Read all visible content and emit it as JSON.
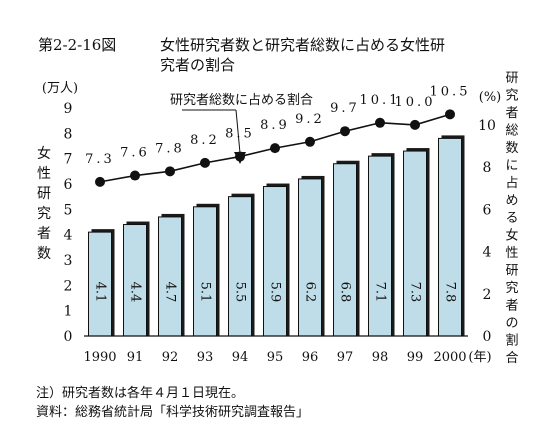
{
  "chart_data": {
    "type": "bar",
    "title": "第2-2-16図　　女性研究者数と研究者総数に占める女性研究者の割合",
    "figure_number": "第2-2-16図",
    "title_line1": "女性研究者数と研究者総数に占める女性研",
    "title_line2": "究者の割合",
    "categories": [
      "1990",
      "91",
      "92",
      "93",
      "94",
      "95",
      "96",
      "97",
      "98",
      "99",
      "2000"
    ],
    "x_unit": "(年)",
    "y_left": {
      "unit": "(万人)",
      "label": "女性研究者数",
      "ylim": [
        0,
        9
      ],
      "ticks": [
        0,
        1,
        2,
        3,
        4,
        5,
        6,
        7,
        8,
        9
      ]
    },
    "y_right": {
      "unit": "(%)",
      "label": "研究者総数に占める女性研究者の割合",
      "ylim": [
        0,
        10.8
      ],
      "ticks": [
        0,
        2,
        4,
        6,
        8,
        10
      ]
    },
    "series": [
      {
        "type": "bar",
        "axis": "left",
        "values": [
          4.1,
          4.4,
          4.7,
          5.1,
          5.5,
          5.9,
          6.2,
          6.8,
          7.1,
          7.3,
          7.8
        ],
        "labels": [
          "4.1",
          "4.4",
          "4.7",
          "5.1",
          "5.5",
          "5.9",
          "6.2",
          "6.8",
          "7.1",
          "7.3",
          "7.8"
        ],
        "color": "#bfdde8"
      },
      {
        "type": "line",
        "axis": "right",
        "name": "研究者総数に占める割合",
        "values": [
          7.3,
          7.6,
          7.8,
          8.2,
          8.5,
          8.9,
          9.2,
          9.7,
          10.1,
          10.0,
          10.5
        ],
        "labels": [
          "7.3",
          "7.6",
          "7.8",
          "8.2",
          "8.5",
          "8.9",
          "9.2",
          "9.7",
          "10.1",
          "10.0",
          "10.5"
        ],
        "color": "#111111"
      }
    ],
    "annotation": "研究者総数に占める割合",
    "note": "注）研究者数は各年４月１日現在。",
    "source": "資料：総務省統計局「科学技術研究調査報告」",
    "grid": false,
    "legend": "none"
  }
}
